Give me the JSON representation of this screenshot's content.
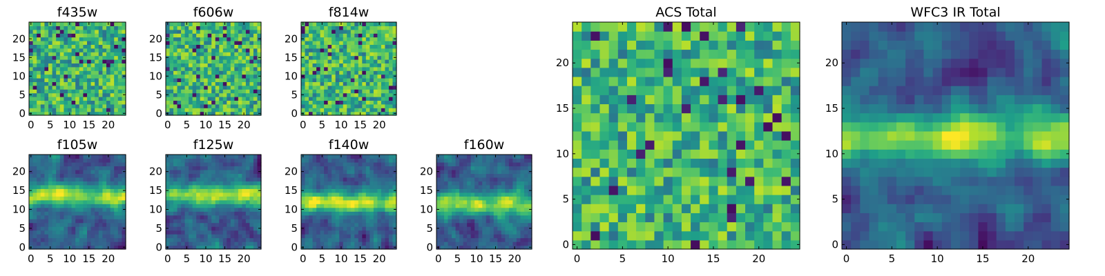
{
  "chart_data": [
    {
      "id": "f435w",
      "type": "heatmap",
      "title": "f435w",
      "grid": 25,
      "texture": "noise",
      "seed": 11,
      "xlim": [
        -0.5,
        24.5
      ],
      "ylim": [
        -0.5,
        24.5
      ],
      "xticks": [
        0,
        5,
        10,
        15,
        20
      ],
      "yticks": [
        0,
        5,
        10,
        15,
        20
      ],
      "colormap": "viridis"
    },
    {
      "id": "f606w",
      "type": "heatmap",
      "title": "f606w",
      "grid": 25,
      "texture": "noise",
      "seed": 23,
      "xlim": [
        -0.5,
        24.5
      ],
      "ylim": [
        -0.5,
        24.5
      ],
      "xticks": [
        0,
        5,
        10,
        15,
        20
      ],
      "yticks": [
        0,
        5,
        10,
        15,
        20
      ],
      "colormap": "viridis"
    },
    {
      "id": "f814w",
      "type": "heatmap",
      "title": "f814w",
      "grid": 25,
      "texture": "noise",
      "seed": 37,
      "xlim": [
        -0.5,
        24.5
      ],
      "ylim": [
        -0.5,
        24.5
      ],
      "xticks": [
        0,
        5,
        10,
        15,
        20
      ],
      "yticks": [
        0,
        5,
        10,
        15,
        20
      ],
      "colormap": "viridis"
    },
    {
      "id": "f105w",
      "type": "heatmap",
      "title": "f105w",
      "grid": 25,
      "texture": "band",
      "seed": 41,
      "band_row": 13.5,
      "xlim": [
        -0.5,
        24.5
      ],
      "ylim": [
        -0.5,
        24.5
      ],
      "xticks": [
        0,
        5,
        10,
        15,
        20
      ],
      "yticks": [
        0,
        5,
        10,
        15,
        20
      ],
      "colormap": "viridis"
    },
    {
      "id": "f125w",
      "type": "heatmap",
      "title": "f125w",
      "grid": 25,
      "texture": "band",
      "seed": 53,
      "band_row": 14,
      "xlim": [
        -0.5,
        24.5
      ],
      "ylim": [
        -0.5,
        24.5
      ],
      "xticks": [
        0,
        5,
        10,
        15,
        20
      ],
      "yticks": [
        0,
        5,
        10,
        15,
        20
      ],
      "colormap": "viridis"
    },
    {
      "id": "f140w",
      "type": "heatmap",
      "title": "f140w",
      "grid": 25,
      "texture": "band",
      "seed": 67,
      "band_row": 12,
      "xlim": [
        -0.5,
        24.5
      ],
      "ylim": [
        -0.5,
        24.5
      ],
      "xticks": [
        0,
        5,
        10,
        15,
        20
      ],
      "yticks": [
        0,
        5,
        10,
        15,
        20
      ],
      "colormap": "viridis"
    },
    {
      "id": "f160w",
      "type": "heatmap",
      "title": "f160w",
      "grid": 25,
      "texture": "band",
      "seed": 79,
      "band_row": 11.5,
      "xlim": [
        -0.5,
        24.5
      ],
      "ylim": [
        -0.5,
        24.5
      ],
      "xticks": [
        0,
        5,
        10,
        15,
        20
      ],
      "yticks": [
        0,
        5,
        10,
        15,
        20
      ],
      "colormap": "viridis"
    },
    {
      "id": "acs-total",
      "type": "heatmap",
      "title": "ACS Total",
      "grid": 25,
      "texture": "noise",
      "seed": 97,
      "xlim": [
        -0.5,
        24.5
      ],
      "ylim": [
        -0.5,
        24.5
      ],
      "xticks": [
        0,
        5,
        10,
        15,
        20
      ],
      "yticks": [
        0,
        5,
        10,
        15,
        20
      ],
      "colormap": "viridis"
    },
    {
      "id": "wfc3-ir-total",
      "type": "heatmap",
      "title": "WFC3 IR Total",
      "grid": 25,
      "texture": "band",
      "seed": 101,
      "band_row": 12,
      "xlim": [
        -0.5,
        24.5
      ],
      "ylim": [
        -0.5,
        24.5
      ],
      "xticks": [
        0,
        5,
        10,
        15,
        20
      ],
      "yticks": [
        0,
        5,
        10,
        15,
        20
      ],
      "colormap": "viridis"
    }
  ]
}
